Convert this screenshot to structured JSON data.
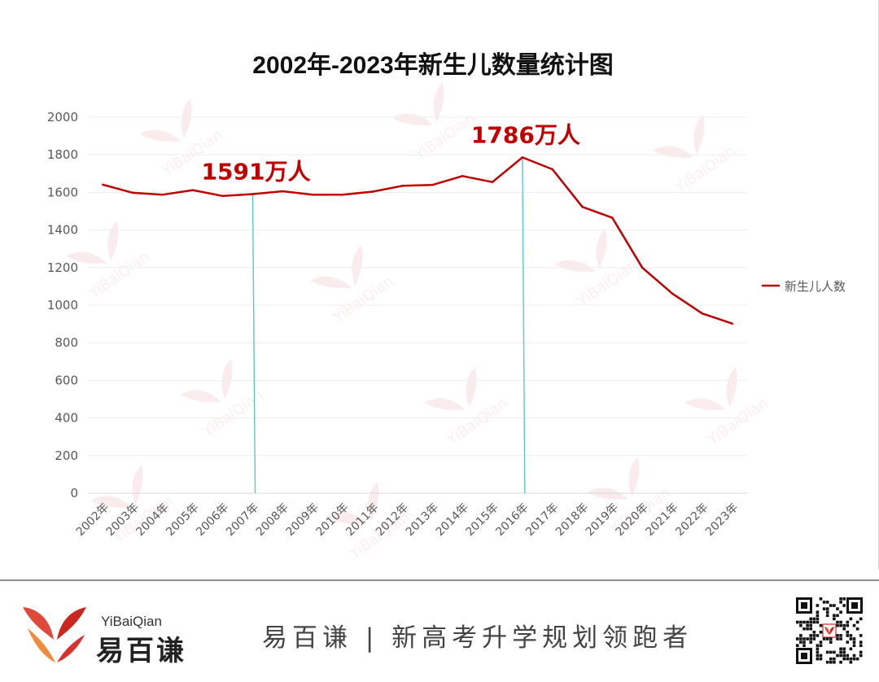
{
  "chart_data": {
    "type": "line",
    "title": "2002年-2023年新生儿数量统计图",
    "categories": [
      "2002年",
      "2003年",
      "2004年",
      "2005年",
      "2006年",
      "2007年",
      "2008年",
      "2009年",
      "2010年",
      "2011年",
      "2012年",
      "2013年",
      "2014年",
      "2015年",
      "2016年",
      "2017年",
      "2018年",
      "2019年",
      "2020年",
      "2021年",
      "2022年",
      "2023年"
    ],
    "series": [
      {
        "name": "新生儿人数",
        "color": "#c00000",
        "values": [
          1641,
          1598,
          1588,
          1612,
          1581,
          1591,
          1606,
          1588,
          1588,
          1604,
          1635,
          1640,
          1687,
          1655,
          1786,
          1723,
          1523,
          1465,
          1200,
          1062,
          956,
          902
        ]
      }
    ],
    "ylim": [
      0,
      2000
    ],
    "yticks": [
      0,
      200,
      400,
      600,
      800,
      1000,
      1200,
      1400,
      1600,
      1800,
      2000
    ],
    "grid": true,
    "legend_position": "right",
    "annotations": [
      {
        "text": "1591万人",
        "category_index": 5
      },
      {
        "text": "1786万人",
        "category_index": 14
      }
    ],
    "annotation_color": "#c00000",
    "marker_line_color": "#5bc8c8",
    "watermark_text": "YiBaiQian"
  },
  "footer": {
    "brand_en": "YiBaiQian",
    "brand_cn": "易百谦",
    "slogan": "易百谦 | 新高考升学规划领跑者"
  }
}
